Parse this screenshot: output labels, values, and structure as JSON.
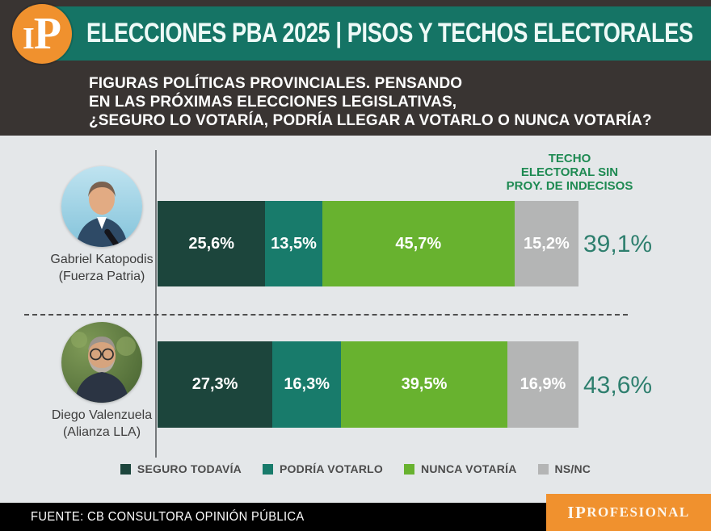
{
  "header": {
    "logo_letter_i": "I",
    "logo_letter_p": "P",
    "title": "ELECCIONES PBA 2025 | PISOS Y TECHOS ELECTORALES"
  },
  "question": {
    "line1": "FIGURAS POLÍTICAS PROVINCIALES. PENSANDO",
    "line2": "EN LAS PRÓXIMAS ELECCIONES LEGISLATIVAS,",
    "line3": "¿SEGURO LO VOTARÍA, PODRÍA LLEGAR A VOTARLO O NUNCA VOTARÍA?"
  },
  "ceiling_header": {
    "line1": "TECHO",
    "line2": "ELECTORAL SIN",
    "line3": "PROY. DE INDECISOS"
  },
  "chart_data": {
    "type": "bar",
    "orientation": "horizontal-stacked",
    "unit": "%",
    "xlim": [
      0,
      100
    ],
    "categories": [
      "Gabriel Katopodis (Fuerza Patria)",
      "Diego Valenzuela (Alianza LLA)"
    ],
    "series": [
      {
        "name": "SEGURO TODAVÍA",
        "key": "seguro",
        "color": "#1c453c",
        "values": [
          25.6,
          27.3
        ],
        "labels": [
          "25,6%",
          "27,3%"
        ]
      },
      {
        "name": "PODRÍA VOTARLO",
        "key": "podria",
        "color": "#187b6b",
        "values": [
          13.5,
          16.3
        ],
        "labels": [
          "13,5%",
          "16,3%"
        ]
      },
      {
        "name": "NUNCA VOTARÍA",
        "key": "nunca",
        "color": "#68b22f",
        "values": [
          45.7,
          39.5
        ],
        "labels": [
          "45,7%",
          "39,5%"
        ]
      },
      {
        "name": "NS/NC",
        "key": "nsnc",
        "color": "#b4b5b5",
        "values": [
          15.2,
          16.9
        ],
        "labels": [
          "15,2%",
          "16,9%"
        ]
      }
    ],
    "ceiling_values": [
      39.1,
      43.6
    ]
  },
  "rows": [
    {
      "name": "Gabriel Katopodis",
      "party": "(Fuerza Patria)",
      "ceiling_label": "39,1%"
    },
    {
      "name": "Diego Valenzuela",
      "party": "(Alianza LLA)",
      "ceiling_label": "43,6%"
    }
  ],
  "footer": {
    "source": "FUENTE: CB CONSULTORA OPINIÓN PÚBLICA",
    "brand_prefix": "IP",
    "brand_rest": "ROFESIONAL"
  },
  "colors": {
    "header_green": "#157465",
    "brand_orange": "#f0912e",
    "ceiling_header_green": "#1e8a52",
    "ceiling_value_teal": "#2e7f6e",
    "dark_background": "#393432",
    "chart_background": "#e4e7e9"
  }
}
